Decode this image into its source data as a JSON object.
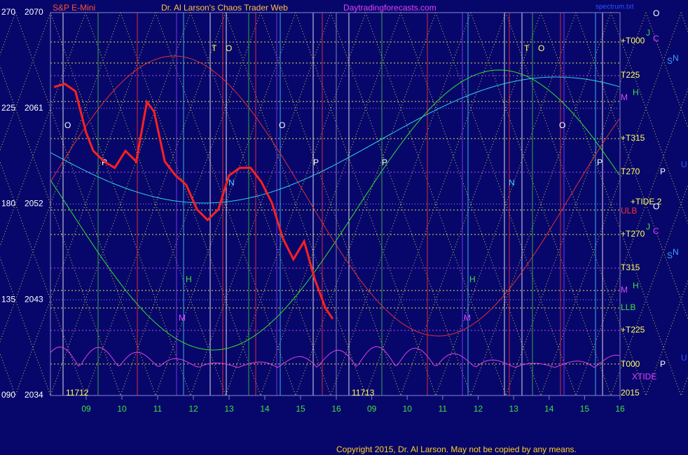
{
  "chart_data": {
    "type": "line",
    "title": "Dr. Al Larson's Chaos Trader Web",
    "instrument": "S&P E-Mini",
    "site": "Daytradingforecasts.com",
    "file": "spectrum.txt",
    "copyright": "Copyright 2015, Dr. Al Larson. May not be copied by any means.",
    "panels": [
      "11712",
      "11713"
    ],
    "xlim": [
      8,
      16
    ],
    "xticks": [
      {
        "value": 9,
        "label": "09"
      },
      10,
      11,
      12,
      13,
      14,
      15,
      16
    ],
    "ylim": [
      2034,
      2070
    ],
    "yticks": [
      2034,
      2043,
      2052,
      2061,
      2070
    ],
    "angle_labels": [
      "090",
      "135",
      "180",
      "225",
      "270"
    ],
    "series": [
      {
        "name": "S&P E-Mini",
        "color": "#ff2020",
        "x": [
          8.1,
          8.4,
          8.7,
          9.0,
          9.2,
          9.5,
          9.8,
          10.1,
          10.4,
          10.7,
          10.9,
          11.2,
          11.5,
          11.8,
          12.1,
          12.4,
          12.7,
          13.0,
          13.3,
          13.6,
          13.9,
          14.2,
          14.5,
          14.8,
          15.1,
          15.4,
          15.7,
          15.9
        ],
        "values": [
          2063,
          2063.3,
          2062.6,
          2058.7,
          2057,
          2056,
          2055.4,
          2057,
          2056,
          2061.6,
          2060.7,
          2056,
          2054.7,
          2053.8,
          2051.5,
          2050.5,
          2051.5,
          2054.7,
          2055.4,
          2055.4,
          2054.1,
          2052.1,
          2048.8,
          2046.8,
          2048.5,
          2044.9,
          2042.2,
          2041.2
        ]
      }
    ],
    "right_labels": [
      "O",
      "+T000",
      "J",
      "C",
      "S",
      "N",
      "T225",
      "M",
      "H",
      "+T315",
      "T270",
      "P",
      "U",
      "+TIDE 2",
      "ULB",
      "O",
      "+T270",
      "J",
      "C",
      "S",
      "N",
      "T315",
      "M",
      "H",
      "LLB",
      "+T225",
      "T000",
      "P",
      "U",
      "XTIDE",
      "2015"
    ],
    "annotations": [
      "T",
      "O",
      "O",
      "P",
      "P",
      "O",
      "T",
      "O",
      "O",
      "P",
      "P",
      "H",
      "H",
      "M",
      "M",
      "N",
      "N"
    ]
  }
}
